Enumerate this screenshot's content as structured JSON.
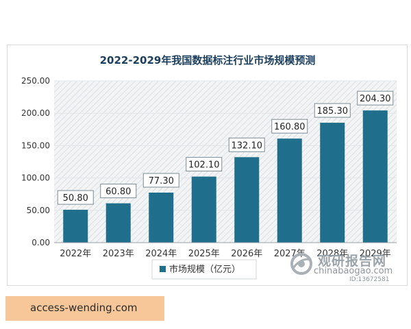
{
  "chart_data": {
    "type": "bar",
    "title": "2022-2029年我国数据标注行业市场规模预测",
    "categories": [
      "2022年",
      "2023年",
      "2024年",
      "2025年",
      "2026年",
      "2027年",
      "2028年",
      "2029年"
    ],
    "series": [
      {
        "name": "市场规模（亿元）",
        "values": [
          50.8,
          60.8,
          77.3,
          102.1,
          132.1,
          160.8,
          185.3,
          204.3
        ],
        "color": "#1f6e8c"
      }
    ],
    "data_labels": [
      "50.80",
      "60.80",
      "77.30",
      "102.10",
      "132.10",
      "160.80",
      "185.30",
      "204.30"
    ],
    "y_ticks": [
      "0.00",
      "50.00",
      "100.00",
      "150.00",
      "200.00",
      "250.00"
    ],
    "ylim": [
      0,
      250
    ],
    "grid": true,
    "legend": "bottom",
    "xlabel": "",
    "ylabel": ""
  },
  "watermark": {
    "brand": "观研报告网",
    "site": "chinabaogao.com",
    "id": "ID:13672581"
  },
  "banner": {
    "text": "access-wending.com"
  }
}
